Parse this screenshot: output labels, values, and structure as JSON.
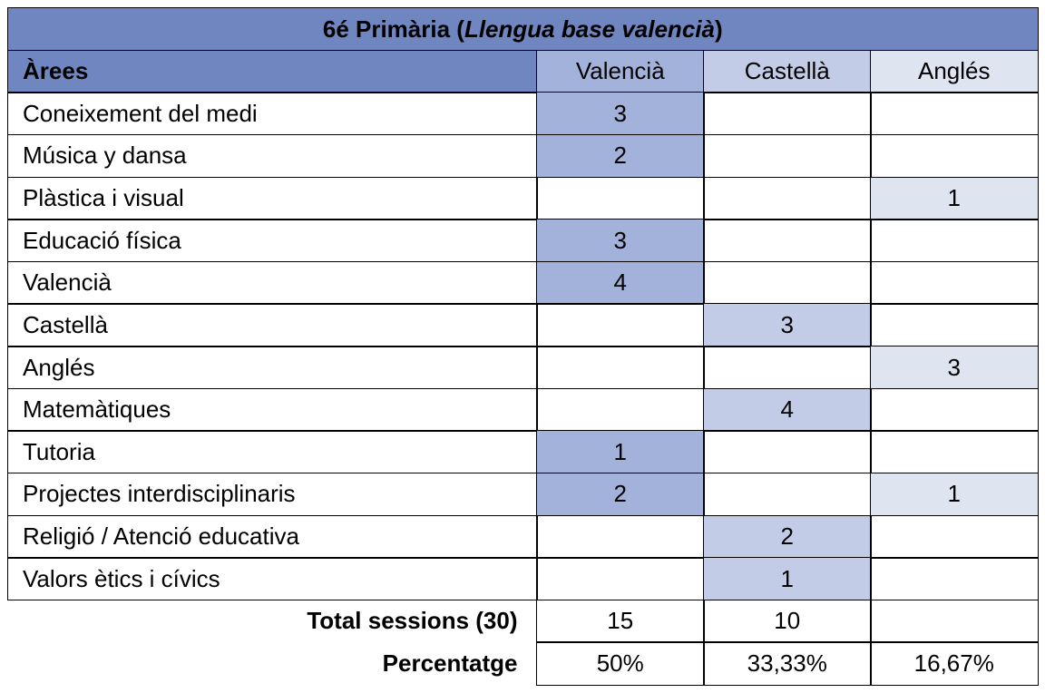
{
  "table": {
    "title": [
      "6é Primària (",
      "Llengua base valencià",
      ")"
    ],
    "header": [
      "Àrees",
      "Valencià",
      "Castellà",
      "Anglés"
    ],
    "rows": [
      [
        "Coneixement del medi",
        3,
        null,
        null
      ],
      [
        "Música y dansa",
        2,
        null,
        null
      ],
      [
        "Plàstica i visual",
        null,
        null,
        1
      ],
      [
        "Educació física",
        3,
        null,
        null
      ],
      [
        "Valencià",
        4,
        null,
        null
      ],
      [
        "Castellà",
        null,
        3,
        null
      ],
      [
        "Anglés",
        null,
        null,
        3
      ],
      [
        "Matemàtiques",
        null,
        4,
        null
      ],
      [
        "Tutoria",
        1,
        null,
        null
      ],
      [
        "Projectes interdisciplinaris",
        2,
        null,
        1
      ],
      [
        "Religió / Atenció educativa",
        null,
        2,
        null
      ],
      [
        "Valors ètics i cívics",
        null,
        1,
        null
      ]
    ],
    "totals": [
      [
        "Total sessions (30)",
        15,
        10,
        null
      ],
      [
        "Percentatge",
        "50%",
        "33,33%",
        "16,67%"
      ]
    ]
  }
}
